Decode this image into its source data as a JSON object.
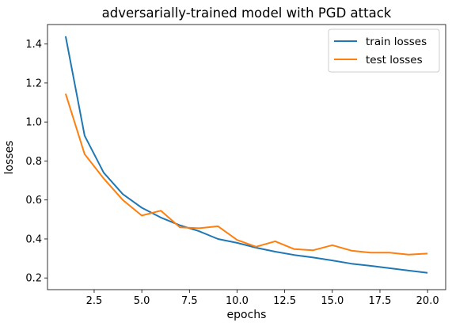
{
  "chart_data": {
    "type": "line",
    "title": "adversarially-trained model with PGD attack",
    "xlabel": "epochs",
    "ylabel": "losses",
    "xlim": [
      0.05,
      20.95
    ],
    "ylim": [
      0.14,
      1.5
    ],
    "xticks": [
      2.5,
      5.0,
      7.5,
      10.0,
      12.5,
      15.0,
      17.5,
      20.0
    ],
    "xtick_labels": [
      "2.5",
      "5.0",
      "7.5",
      "10.0",
      "12.5",
      "15.0",
      "17.5",
      "20.0"
    ],
    "yticks": [
      0.2,
      0.4,
      0.6,
      0.8,
      1.0,
      1.2,
      1.4
    ],
    "ytick_labels": [
      "0.2",
      "0.4",
      "0.6",
      "0.8",
      "1.0",
      "1.2",
      "1.4"
    ],
    "grid": false,
    "legend_position": "top-right",
    "x": [
      1,
      2,
      3,
      4,
      5,
      6,
      7,
      8,
      9,
      10,
      11,
      12,
      13,
      14,
      15,
      16,
      17,
      18,
      19,
      20
    ],
    "series": [
      {
        "name": "train losses",
        "color": "#1f77b4",
        "values": [
          1.44,
          0.93,
          0.74,
          0.63,
          0.56,
          0.51,
          0.47,
          0.44,
          0.4,
          0.38,
          0.355,
          0.335,
          0.318,
          0.305,
          0.29,
          0.273,
          0.262,
          0.25,
          0.238,
          0.226
        ]
      },
      {
        "name": "test losses",
        "color": "#ff7f0e",
        "values": [
          1.145,
          0.835,
          0.71,
          0.6,
          0.52,
          0.545,
          0.46,
          0.455,
          0.465,
          0.395,
          0.36,
          0.388,
          0.348,
          0.342,
          0.368,
          0.34,
          0.33,
          0.33,
          0.32,
          0.325
        ]
      }
    ]
  }
}
